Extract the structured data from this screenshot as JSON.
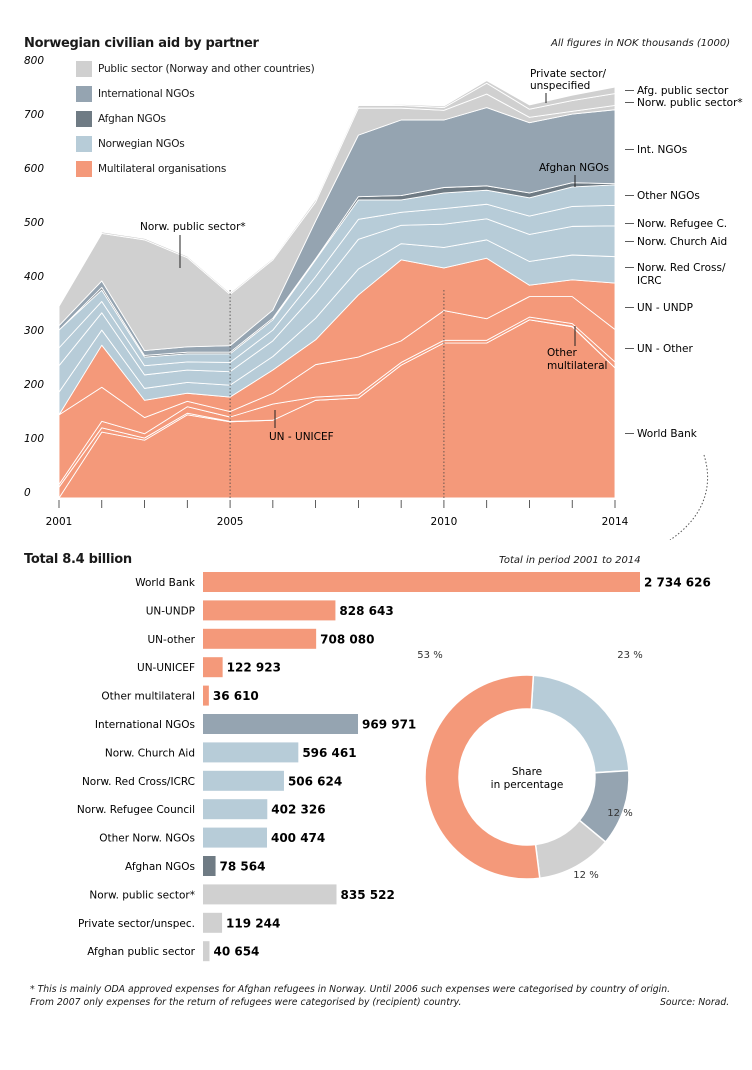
{
  "header": {
    "title": "Norwegian civilian aid by partner",
    "units_note": "All figures in NOK thousands (1000)"
  },
  "colors": {
    "multilateral": "#f4997a",
    "norwegian_ngos": "#b7ccd8",
    "afghan_ngos": "#6f7b84",
    "international_ngos": "#95a4b1",
    "public_sector": "#d0d0d0"
  },
  "legend": [
    {
      "label": "Public sector (Norway and other countries)",
      "color": "#d0d0d0"
    },
    {
      "label": "International NGOs",
      "color": "#95a4b1"
    },
    {
      "label": "Afghan NGOs",
      "color": "#6f7b84"
    },
    {
      "label": "Norwegian NGOs",
      "color": "#b7ccd8"
    },
    {
      "label": "Multilateral organisations",
      "color": "#f4997a"
    }
  ],
  "chart_data": [
    {
      "type": "area",
      "stacked": true,
      "x": [
        2001,
        2002,
        2003,
        2004,
        2005,
        2006,
        2007,
        2008,
        2009,
        2010,
        2011,
        2012,
        2013,
        2014
      ],
      "x_tick_labels": [
        "2001",
        "2005",
        "2010",
        "2014"
      ],
      "y_tick_labels": [
        "0",
        "100",
        "200",
        "300",
        "400",
        "500",
        "600",
        "700",
        "800"
      ],
      "ylim": [
        0,
        800
      ],
      "grid": false,
      "reference_lines_x": [
        2005,
        2010
      ],
      "series": [
        {
          "name": "World Bank",
          "group": "multilateral",
          "values": [
            0,
            122,
            107,
            154,
            141,
            144,
            181,
            185,
            246,
            287,
            287,
            330,
            317,
            241
          ]
        },
        {
          "name": "Other multilateral",
          "group": "multilateral",
          "values": [
            20,
            8,
            4,
            3,
            1,
            0,
            0,
            0,
            0,
            0,
            0,
            0,
            1,
            0
          ]
        },
        {
          "name": "UN - UNICEF",
          "group": "multilateral",
          "values": [
            5,
            12,
            8,
            12,
            8,
            30,
            6,
            6,
            5,
            5,
            5,
            5,
            5,
            11
          ]
        },
        {
          "name": "UN - Other",
          "group": "multilateral",
          "values": [
            129,
            63,
            30,
            10,
            10,
            20,
            60,
            70,
            40,
            55,
            40,
            38,
            50,
            60
          ]
        },
        {
          "name": "UN - UNDP",
          "group": "multilateral",
          "values": [
            0,
            78,
            32,
            15,
            27,
            43,
            46,
            115,
            150,
            79,
            112,
            21,
            31,
            86
          ]
        },
        {
          "name": "Norw. Red Cross/ ICRC",
          "group": "norwegian_ngos",
          "values": [
            42,
            28,
            22,
            20,
            22,
            25,
            40,
            48,
            30,
            38,
            34,
            44,
            46,
            49
          ]
        },
        {
          "name": "Norw. Church Aid",
          "group": "norwegian_ngos",
          "values": [
            49,
            32,
            25,
            23,
            25,
            29,
            46,
            55,
            34,
            43,
            39,
            50,
            53,
            57
          ]
        },
        {
          "name": "Norw. Refugee C.",
          "group": "norwegian_ngos",
          "values": [
            33,
            21,
            17,
            15,
            17,
            20,
            31,
            37,
            24,
            29,
            27,
            34,
            37,
            38
          ]
        },
        {
          "name": "Other NGOs",
          "group": "norwegian_ngos",
          "values": [
            33,
            21,
            16,
            15,
            16,
            19,
            31,
            36,
            23,
            29,
            26,
            34,
            36,
            38
          ]
        },
        {
          "name": "Afghan NGOs",
          "group": "afghan_ngos",
          "values": [
            0,
            5,
            3,
            3,
            3,
            3,
            2,
            6,
            8,
            10,
            8,
            9,
            8,
            2
          ]
        },
        {
          "name": "Int. NGOs",
          "group": "international_ngos",
          "values": [
            8,
            12,
            9,
            10,
            12,
            15,
            70,
            114,
            140,
            125,
            145,
            130,
            127,
            137
          ]
        },
        {
          "name": "Norw. public sector*",
          "group": "public_sector",
          "values": [
            36,
            88,
            205,
            165,
            95,
            93,
            35,
            50,
            22,
            18,
            25,
            10,
            5,
            8
          ]
        },
        {
          "name": "Private sector/ unspecified",
          "group": "public_sector",
          "values": [
            2,
            3,
            3,
            3,
            3,
            3,
            5,
            5,
            5,
            5,
            20,
            15,
            20,
            22
          ]
        },
        {
          "name": "Afg. public sector",
          "group": "public_sector",
          "values": [
            0,
            0,
            0,
            0,
            0,
            0,
            0,
            0,
            2,
            3,
            5,
            8,
            10,
            12
          ]
        }
      ],
      "right_labels": [
        "Afg. public sector",
        "Norw. public sector*",
        "Int. NGOs",
        "Other NGOs",
        "Norw. Refugee C.",
        "Norw. Church Aid",
        "Norw. Red Cross/",
        "ICRC",
        "UN - UNDP",
        "UN - Other",
        "World Bank"
      ],
      "annotations": {
        "norw_public": "Norw. public sector*",
        "private_1": "Private sector/",
        "private_2": "unspecified",
        "afghan_ngos": "Afghan NGOs",
        "unicef": "UN - UNICEF",
        "other_mult_1": "Other",
        "other_mult_2": "multilateral"
      }
    },
    {
      "type": "bar",
      "orientation": "horizontal",
      "title": "Total 8.4 billion",
      "subtitle": "Total in period  2001 to 2014",
      "categories": [
        "World Bank",
        "UN-UNDP",
        "UN-other",
        "UN-UNICEF",
        "Other multilateral",
        "International NGOs",
        "Norw. Church Aid",
        "Norw. Red Cross/ICRC",
        "Norw. Refugee Council",
        "Other Norw. NGOs",
        "Afghan NGOs",
        "Norw. public sector*",
        "Private sector/unspec.",
        "Afghan public sector"
      ],
      "values": [
        2734626,
        828643,
        708080,
        122923,
        36610,
        969971,
        596461,
        506624,
        402326,
        400474,
        78564,
        835522,
        119244,
        40654
      ],
      "value_labels": [
        "2 734 626",
        "828 643",
        "708 080",
        "122 923",
        "36 610",
        "969 971",
        "596 461",
        "506 624",
        "402 326",
        "400 474",
        "78 564",
        "835 522",
        "119 244",
        "40 654"
      ],
      "groups": [
        "multilateral",
        "multilateral",
        "multilateral",
        "multilateral",
        "multilateral",
        "international_ngos",
        "norwegian_ngos",
        "norwegian_ngos",
        "norwegian_ngos",
        "norwegian_ngos",
        "afghan_ngos",
        "public_sector",
        "public_sector",
        "public_sector"
      ]
    },
    {
      "type": "pie",
      "donut": true,
      "center_label": [
        "Share",
        "in percentage"
      ],
      "slices": [
        {
          "group": "norwegian_ngos",
          "value": 23,
          "label": "23 %"
        },
        {
          "group": "international_ngos",
          "value": 12,
          "label": "12 %"
        },
        {
          "group": "public_sector",
          "value": 12,
          "label": "12 %"
        },
        {
          "group": "multilateral",
          "value": 53,
          "label": "53 %"
        }
      ]
    }
  ],
  "footer": {
    "note_1": "* This is mainly ODA approved expenses for Afghan refugees in Norway. Until 2006 such expenses were categorised by country of origin.",
    "note_2": "From 2007 only expenses for the return of refugees were categorised by (recipient) country.",
    "source": "Source: Norad."
  }
}
